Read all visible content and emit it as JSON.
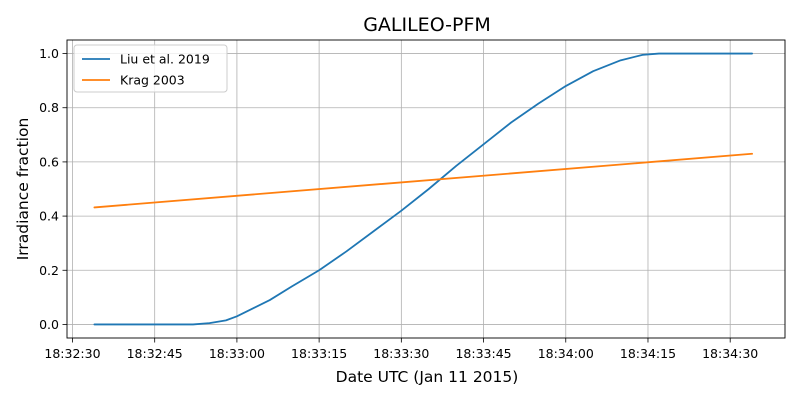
{
  "chart_data": {
    "type": "line",
    "title": "GALILEO-PFM",
    "xlabel": "Date UTC (Jan 11 2015)",
    "ylabel": "Irradiance fraction",
    "x_tick_labels": [
      "18:32:30",
      "18:32:45",
      "18:33:00",
      "18:33:15",
      "18:33:30",
      "18:33:45",
      "18:34:00",
      "18:34:15",
      "18:34:30"
    ],
    "y_ticks": [
      0.0,
      0.2,
      0.4,
      0.6,
      0.8,
      1.0
    ],
    "y_tick_labels": [
      "0.0",
      "0.2",
      "0.4",
      "0.6",
      "0.8",
      "1.0"
    ],
    "xlim": [
      "18:32:29",
      "18:34:40"
    ],
    "ylim": [
      -0.05,
      1.05
    ],
    "grid": true,
    "legend_position": "top-left",
    "series": [
      {
        "name": "Liu et al. 2019",
        "color": "#1f77b4",
        "x": [
          "18:32:34",
          "18:32:40",
          "18:32:46",
          "18:32:52",
          "18:32:55",
          "18:32:58",
          "18:33:00",
          "18:33:03",
          "18:33:06",
          "18:33:10",
          "18:33:15",
          "18:33:20",
          "18:33:25",
          "18:33:30",
          "18:33:35",
          "18:33:40",
          "18:33:45",
          "18:33:50",
          "18:33:55",
          "18:34:00",
          "18:34:05",
          "18:34:10",
          "18:34:14",
          "18:34:17",
          "18:34:20",
          "18:34:25",
          "18:34:30",
          "18:34:34"
        ],
        "y": [
          0.0,
          0.0,
          0.0,
          0.0,
          0.005,
          0.015,
          0.03,
          0.06,
          0.09,
          0.14,
          0.2,
          0.27,
          0.345,
          0.42,
          0.5,
          0.585,
          0.665,
          0.745,
          0.815,
          0.88,
          0.935,
          0.975,
          0.995,
          1.0,
          1.0,
          1.0,
          1.0,
          1.0
        ]
      },
      {
        "name": "Krag 2003",
        "color": "#ff7f0e",
        "x": [
          "18:32:34",
          "18:34:34"
        ],
        "y": [
          0.432,
          0.63
        ]
      }
    ]
  }
}
